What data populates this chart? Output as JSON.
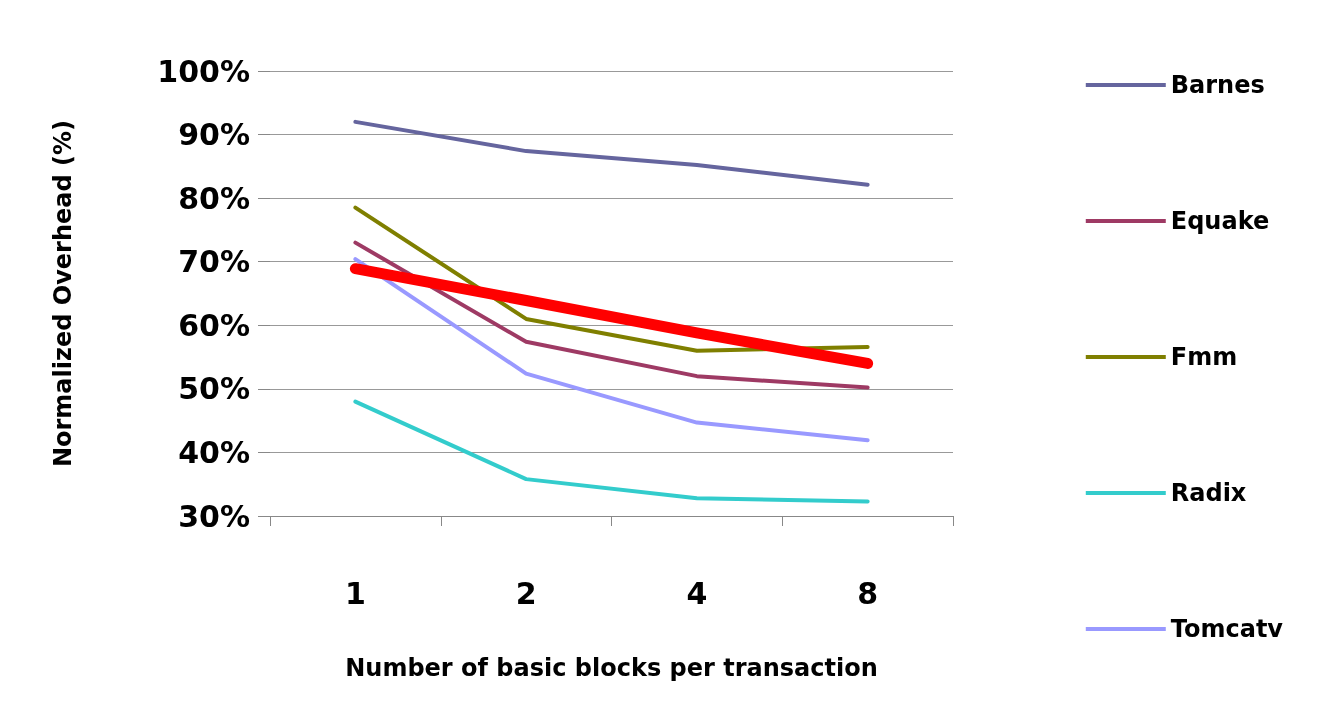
{
  "chart_data": {
    "type": "line",
    "xlabel": "Number of basic blocks per transaction",
    "ylabel": "Normalized Overhead (%)",
    "categories": [
      "1",
      "2",
      "4",
      "8"
    ],
    "ylim": [
      30,
      100
    ],
    "yticks": [
      {
        "value": 30,
        "label": "30%"
      },
      {
        "value": 40,
        "label": "40%"
      },
      {
        "value": 50,
        "label": "50%"
      },
      {
        "value": 60,
        "label": "60%"
      },
      {
        "value": 70,
        "label": "70%"
      },
      {
        "value": 80,
        "label": "80%"
      },
      {
        "value": 90,
        "label": "90%"
      },
      {
        "value": 100,
        "label": "100%"
      }
    ],
    "grid": "y",
    "legend": "right",
    "marker": "none",
    "line_style": "solid",
    "series": [
      {
        "name": "Barnes",
        "color": "#65659e",
        "values": [
          92,
          87.4,
          85.2,
          82.1
        ]
      },
      {
        "name": "Equake",
        "color": "#9e3a64",
        "values": [
          73,
          57.4,
          52,
          50.2
        ]
      },
      {
        "name": "Fmm",
        "color": "#7f7f00",
        "values": [
          78.5,
          61,
          56,
          56.6
        ]
      },
      {
        "name": "Radix",
        "color": "#33cccc",
        "values": [
          48,
          35.8,
          32.8,
          32.3
        ]
      },
      {
        "name": "Tomcatv",
        "color": "#9999ff",
        "values": [
          70.4,
          52.4,
          44.7,
          41.9
        ]
      },
      {
        "type": "line",
        "color": "#ff0000",
        "values": [
          68.9,
          63.9,
          58.8,
          54
        ]
      }
    ]
  }
}
